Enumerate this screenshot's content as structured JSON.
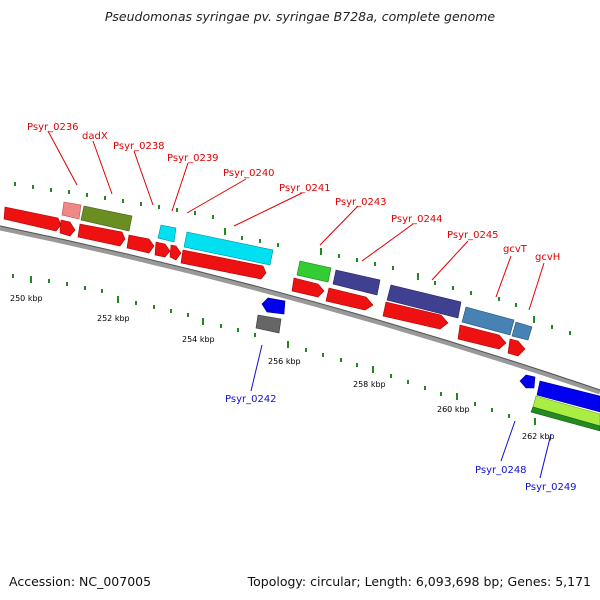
{
  "title": "Pseudomonas syringae pv. syringae B728a, complete genome",
  "accession": "Accession: NC_007005",
  "stats": "Topology: circular; Length: 6,093,698 bp; Genes: 5,171",
  "scale_labels": [
    "250 kbp",
    "252 kbp",
    "254 kbp",
    "256 kbp",
    "258 kbp",
    "260 kbp",
    "262 kbp"
  ],
  "forward_labels": [
    "Psyr_0236",
    "dadX",
    "Psyr_0238",
    "Psyr_0239",
    "Psyr_0240",
    "Psyr_0241",
    "Psyr_0243",
    "Psyr_0244",
    "Psyr_0245",
    "gcvT",
    "gcvH"
  ],
  "reverse_labels": [
    "Psyr_0242",
    "Psyr_0248",
    "Psyr_0249"
  ],
  "colors": {
    "cds": "#ee1111",
    "backbone": "#888888",
    "tick": "#228822",
    "pink": "#f08888",
    "olive": "#6b8e23",
    "cyan": "#00e0f0",
    "green": "#33cc33",
    "purple": "#404090",
    "steelblue": "#4682b4",
    "gray": "#666666",
    "blue": "#0000ee",
    "lightgreen": "#aaee44",
    "darkgreen": "#228b22",
    "fwd_label": "#e00000",
    "rev_label": "#1010d0"
  }
}
